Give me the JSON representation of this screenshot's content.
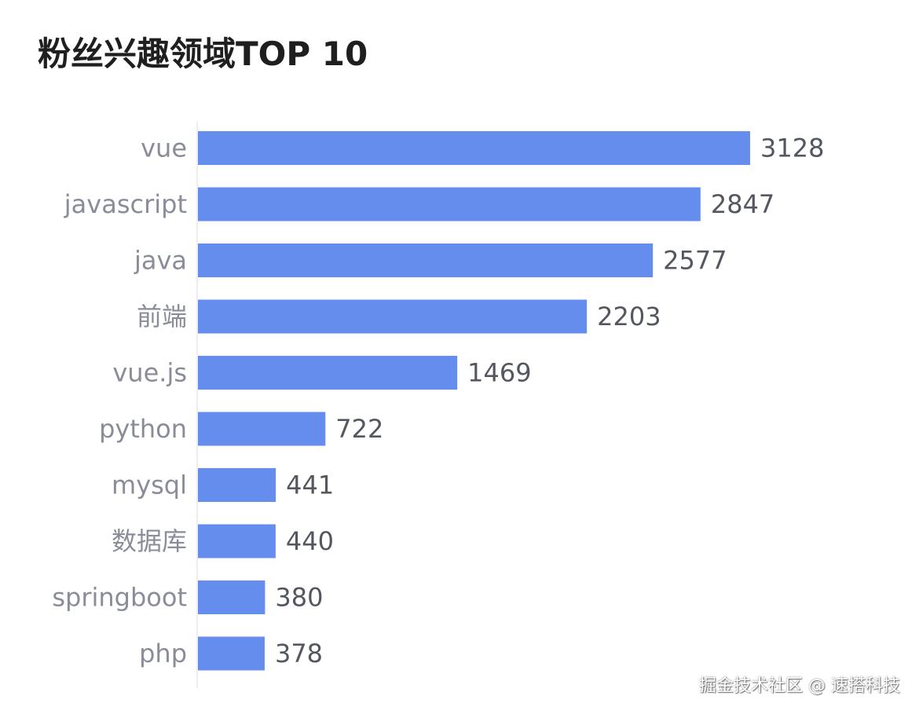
{
  "chart_data": {
    "type": "bar",
    "orientation": "horizontal",
    "title": "粉丝兴趣领域TOP 10",
    "categories": [
      "vue",
      "javascript",
      "java",
      "前端",
      "vue.js",
      "python",
      "mysql",
      "数据库",
      "springboot",
      "php"
    ],
    "values": [
      3128,
      2847,
      2577,
      2203,
      1469,
      722,
      441,
      440,
      380,
      378
    ],
    "xlim": [
      0,
      3600
    ],
    "grid": false,
    "legend": "none",
    "bar_color": "#658ded"
  },
  "watermark": "掘金技术社区 @ 速搭科技"
}
